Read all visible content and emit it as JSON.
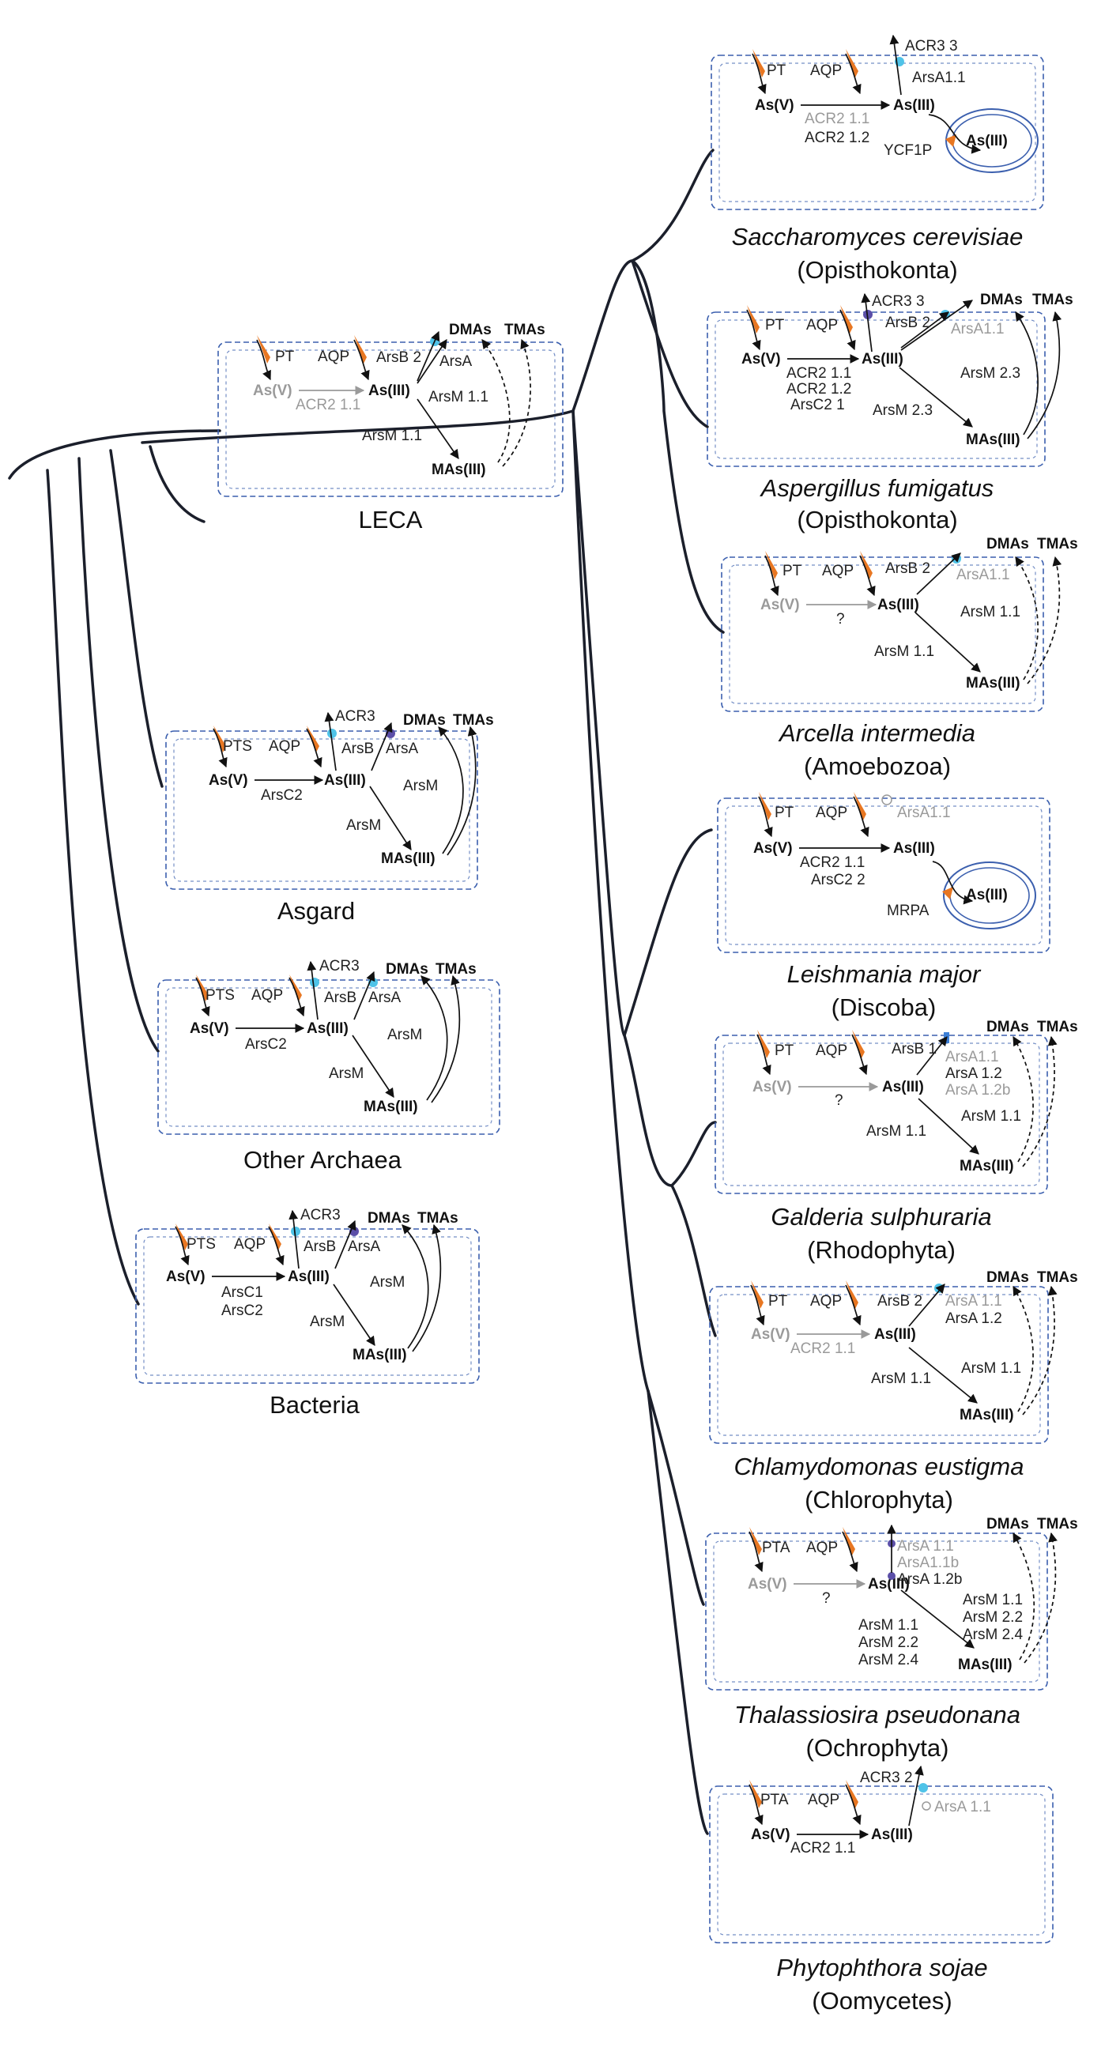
{
  "species": {
    "p1": {
      "name": "Saccharomyces cerevisiae",
      "group": "(Opisthokonta)"
    },
    "p2": {
      "name": "Aspergillus fumigatus",
      "group": "(Opisthokonta)"
    },
    "p3": {
      "name": "Arcella intermedia",
      "group": "(Amoebozoa)"
    },
    "p4": {
      "name": "Leishmania major",
      "group": "(Discoba)"
    },
    "p5": {
      "name": "Galderia sulphuraria",
      "group": "(Rhodophyta)"
    },
    "p6": {
      "name": "Chlamydomonas eustigma",
      "group": "(Chlorophyta)"
    },
    "p7": {
      "name": "Thalassiosira pseudonana",
      "group": "(Ochrophyta)"
    },
    "p8": {
      "name": "Phytophthora sojae",
      "group": "(Oomycetes)"
    },
    "leca": {
      "name": "LECA"
    },
    "asgard": {
      "name": "Asgard"
    },
    "archaea": {
      "name": "Other Archaea"
    },
    "bacteria": {
      "name": "Bacteria"
    }
  },
  "labels": {
    "leca": {
      "pt": "PT",
      "aqp": "AQP",
      "asv": "As(V)",
      "asiii": "As(III)",
      "dmas": "DMAs",
      "tmas": "TMAs",
      "mas": "MAs(III)",
      "acr": "ACR2 1.1",
      "arsb": "ArsB 2",
      "arsa": "ArsA",
      "arsm_a": "ArsM 1.1",
      "arsm_b": "ArsM 1.1"
    },
    "asgard": {
      "pt": "PTS",
      "aqp": "AQP",
      "asv": "As(V)",
      "asiii": "As(III)",
      "dmas": "DMAs",
      "tmas": "TMAs",
      "mas": "MAs(III)",
      "acr3": "ACR3",
      "arsb": "ArsB",
      "arsa": "ArsA",
      "arsc": "ArsC2",
      "arsm_a": "ArsM",
      "arsm_b": "ArsM"
    },
    "archaea": {
      "pt": "PTS",
      "aqp": "AQP",
      "asv": "As(V)",
      "asiii": "As(III)",
      "dmas": "DMAs",
      "tmas": "TMAs",
      "mas": "MAs(III)",
      "acr3": "ACR3",
      "arsb": "ArsB",
      "arsa": "ArsA",
      "arsc": "ArsC2",
      "arsm_a": "ArsM",
      "arsm_b": "ArsM"
    },
    "bacteria": {
      "pt": "PTS",
      "aqp": "AQP",
      "asv": "As(V)",
      "asiii": "As(III)",
      "dmas": "DMAs",
      "tmas": "TMAs",
      "mas": "MAs(III)",
      "acr3": "ACR3",
      "arsb": "ArsB",
      "arsa": "ArsA",
      "arsc1": "ArsC1",
      "arsc2": "ArsC2",
      "arsm_a": "ArsM",
      "arsm_b": "ArsM"
    },
    "p1": {
      "pt": "PT",
      "aqp": "AQP",
      "asv": "As(V)",
      "asiii": "As(III)",
      "asiii2": "As(III)",
      "acr3": "ACR3 3",
      "arsa": "ArsA1.1",
      "acr_a": "ACR2 1.1",
      "acr_b": "ACR2 1.2",
      "ycf": "YCF1P"
    },
    "p2": {
      "pt": "PT",
      "aqp": "AQP",
      "asv": "As(V)",
      "asiii": "As(III)",
      "dmas": "DMAs",
      "tmas": "TMAs",
      "mas": "MAs(III)",
      "acr3": "ACR3 3",
      "arsb": "ArsB 2",
      "arsa": "ArsA1.1",
      "acr_a": "ACR2 1.1",
      "acr_b": "ACR2 1.2",
      "arsc": "ArsC2 1",
      "arsm_a": "ArsM 2.3",
      "arsm_b": "ArsM 2.3"
    },
    "p3": {
      "pt": "PT",
      "aqp": "AQP",
      "asv": "As(V)",
      "asiii": "As(III)",
      "dmas": "DMAs",
      "tmas": "TMAs",
      "mas": "MAs(III)",
      "q": "?",
      "arsb": "ArsB 2",
      "arsa": "ArsA1.1",
      "arsm_a": "ArsM 1.1",
      "arsm_b": "ArsM 1.1"
    },
    "p4": {
      "pt": "PT",
      "aqp": "AQP",
      "asv": "As(V)",
      "asiii": "As(III)",
      "asiii2": "As(III)",
      "arsa": "ArsA1.1",
      "acr": "ACR2 1.1",
      "arsc": "ArsC2 2",
      "mrpa": "MRPA"
    },
    "p5": {
      "pt": "PT",
      "aqp": "AQP",
      "asv": "As(V)",
      "asiii": "As(III)",
      "dmas": "DMAs",
      "tmas": "TMAs",
      "mas": "MAs(III)",
      "q": "?",
      "arsb": "ArsB 1",
      "arsa1": "ArsA1.1",
      "arsa2": "ArsA 1.2",
      "arsa3": "ArsA 1.2b",
      "arsm_a": "ArsM 1.1",
      "arsm_b": "ArsM 1.1"
    },
    "p6": {
      "pt": "PT",
      "aqp": "AQP",
      "asv": "As(V)",
      "asiii": "As(III)",
      "dmas": "DMAs",
      "tmas": "TMAs",
      "mas": "MAs(III)",
      "acr": "ACR2 1.1",
      "arsb": "ArsB 2",
      "arsa1": "ArsA 1.1",
      "arsa2": "ArsA 1.2",
      "arsm_a": "ArsM 1.1",
      "arsm_b": "ArsM 1.1"
    },
    "p7": {
      "pt": "PTA",
      "aqp": "AQP",
      "asv": "As(V)",
      "asiii": "As(III)",
      "dmas": "DMAs",
      "tmas": "TMAs",
      "mas": "MAs(III)",
      "q": "?",
      "arsa1": "ArsA 1.1",
      "arsa2": "ArsA1.1b",
      "arsa3": "ArsA 1.2b",
      "m1": "ArsM 1.1",
      "m2": "ArsM 2.2",
      "m3": "ArsM 2.4",
      "n1": "ArsM 1.1",
      "n2": "ArsM 2.2",
      "n3": "ArsM 2.4"
    },
    "p8": {
      "pt": "PTA",
      "aqp": "AQP",
      "asv": "As(V)",
      "asiii": "As(III)",
      "acr3": "ACR3 2",
      "arsa": "ArsA 1.1",
      "acr": "ACR2 1.1"
    }
  },
  "colors": {
    "membrane": "#3b5fae",
    "tree": "#1b1f2b",
    "transporter": "#e87722",
    "acr3_pump": "#4fc3e8",
    "arsb_pump": "#5b4fa8",
    "inactive": "#9a9a9a"
  }
}
